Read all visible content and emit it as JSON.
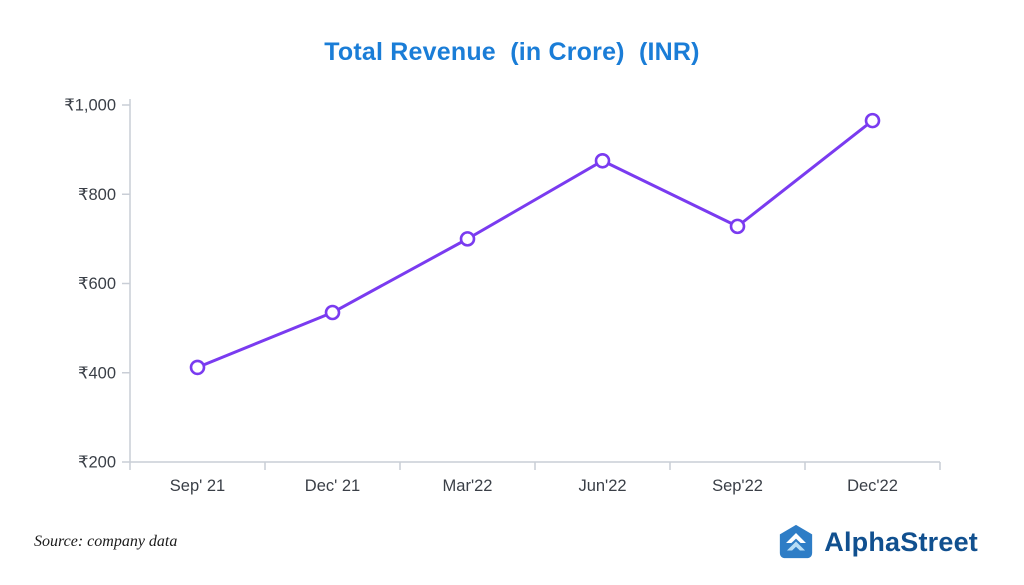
{
  "title": "Total Revenue  (in Crore)  (INR)",
  "source": "Source: company data",
  "logo": {
    "text": "AlphaStreet"
  },
  "colors": {
    "title": "#1a7dd7",
    "line": "#7a3bf0",
    "marker_fill": "#ffffff",
    "axis": "#c9ced6",
    "tick_text": "#3a3f47",
    "logo_text": "#11508f",
    "logo_icon": "#2e7dc6",
    "logo_icon_chevron2": "#b7ddf6"
  },
  "chart_data": {
    "type": "line",
    "title": "Total Revenue  (in Crore)  (INR)",
    "categories": [
      "Sep' 21",
      "Dec' 21",
      "Mar'22",
      "Jun'22",
      "Sep'22",
      "Dec'22"
    ],
    "values": [
      412,
      535,
      700,
      875,
      728,
      965
    ],
    "series": [
      {
        "name": "Total Revenue",
        "values": [
          412,
          535,
          700,
          875,
          728,
          965
        ]
      }
    ],
    "xlabel": "",
    "ylabel": "",
    "ylim": [
      200,
      1000
    ],
    "yticks": [
      200,
      400,
      600,
      800,
      1000
    ],
    "ytick_labels": [
      "₹200",
      "₹400",
      "₹600",
      "₹800",
      "₹1,000"
    ],
    "grid": false,
    "legend": "none",
    "marker": "circle-open",
    "annotations": []
  }
}
